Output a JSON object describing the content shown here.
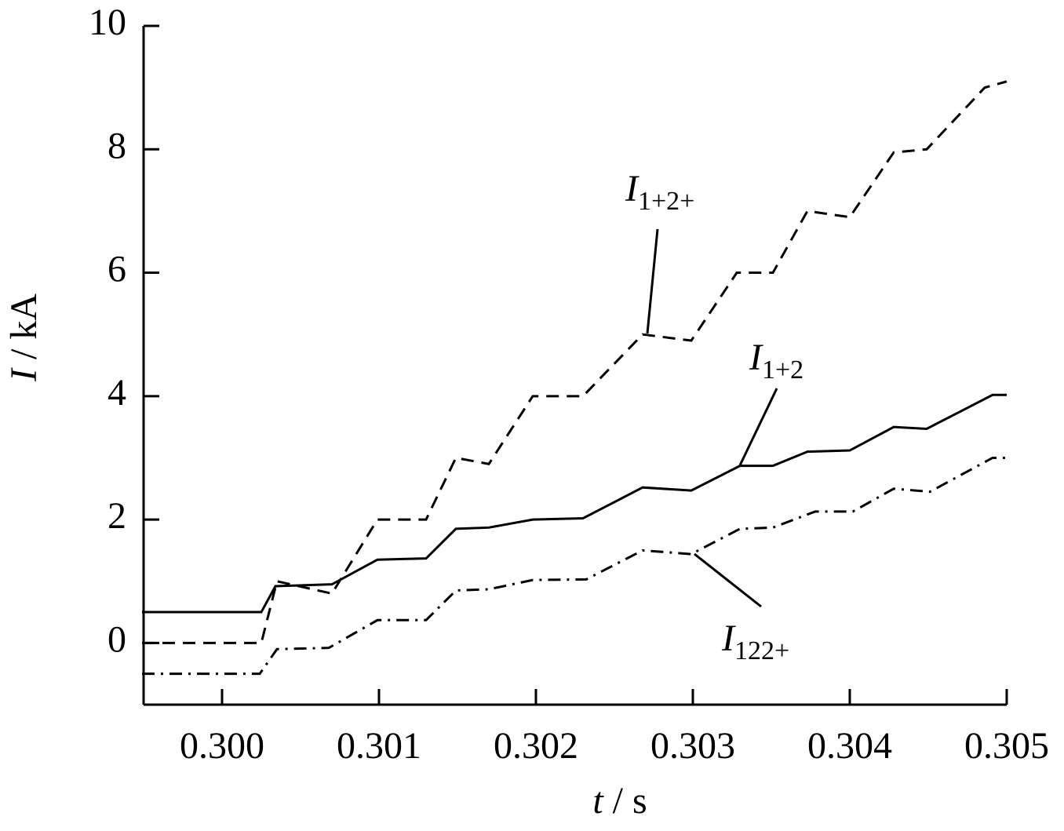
{
  "chart_data": {
    "type": "line",
    "xlabel": {
      "symbol": "t",
      "unit": " / s"
    },
    "ylabel": {
      "symbol": "I",
      "unit": " / kA"
    },
    "xlim": [
      0.2995,
      0.305
    ],
    "ylim": [
      -1,
      10
    ],
    "xticks": [
      {
        "value": 0.3,
        "label": "0.300"
      },
      0.301,
      0.302,
      0.303,
      0.304,
      0.305
    ],
    "yticks": [
      0,
      2,
      4,
      6,
      8,
      10
    ],
    "series": [
      {
        "label": {
          "symbol": "I",
          "sub": "1+2+"
        },
        "color": "#000000",
        "dash": "dashed",
        "x": [
          0.29949,
          0.30025,
          0.30035,
          0.3007,
          0.30099,
          0.3013,
          0.30149,
          0.3017,
          0.30198,
          0.3023,
          0.30268,
          0.30299,
          0.30328,
          0.30351,
          0.30373,
          0.304,
          0.30428,
          0.30449,
          0.30486,
          0.305
        ],
        "values": [
          0,
          0,
          1.0,
          0.8,
          2.0,
          2.0,
          3.0,
          2.9,
          4.0,
          4.0,
          5.0,
          4.9,
          6.0,
          6.0,
          7.0,
          6.9,
          7.95,
          8.0,
          9.0,
          9.1
        ]
      },
      {
        "label": {
          "symbol": "I",
          "sub": "1+2"
        },
        "color": "#000000",
        "dash": "solid",
        "x": [
          0.29949,
          0.30025,
          0.30034,
          0.3007,
          0.30099,
          0.3013,
          0.30149,
          0.3017,
          0.30198,
          0.3023,
          0.30268,
          0.30299,
          0.3033,
          0.30351,
          0.30373,
          0.304,
          0.30428,
          0.30449,
          0.30491,
          0.305
        ],
        "values": [
          0.5,
          0.5,
          0.92,
          0.95,
          1.35,
          1.37,
          1.85,
          1.87,
          2.0,
          2.02,
          2.52,
          2.47,
          2.87,
          2.87,
          3.1,
          3.12,
          3.5,
          3.47,
          4.02,
          4.02
        ]
      },
      {
        "label": {
          "symbol": "I",
          "sub": "122+"
        },
        "color": "#000000",
        "dash": "dashdot",
        "x": [
          0.29949,
          0.30024,
          0.30035,
          0.30068,
          0.30099,
          0.3013,
          0.30149,
          0.3017,
          0.30198,
          0.30232,
          0.30268,
          0.30299,
          0.3033,
          0.30351,
          0.30378,
          0.30402,
          0.30428,
          0.30451,
          0.30491,
          0.305
        ],
        "values": [
          -0.5,
          -0.5,
          -0.1,
          -0.08,
          0.37,
          0.37,
          0.85,
          0.87,
          1.02,
          1.03,
          1.5,
          1.44,
          1.85,
          1.87,
          2.13,
          2.13,
          2.5,
          2.45,
          3.0,
          3.0
        ]
      }
    ]
  }
}
